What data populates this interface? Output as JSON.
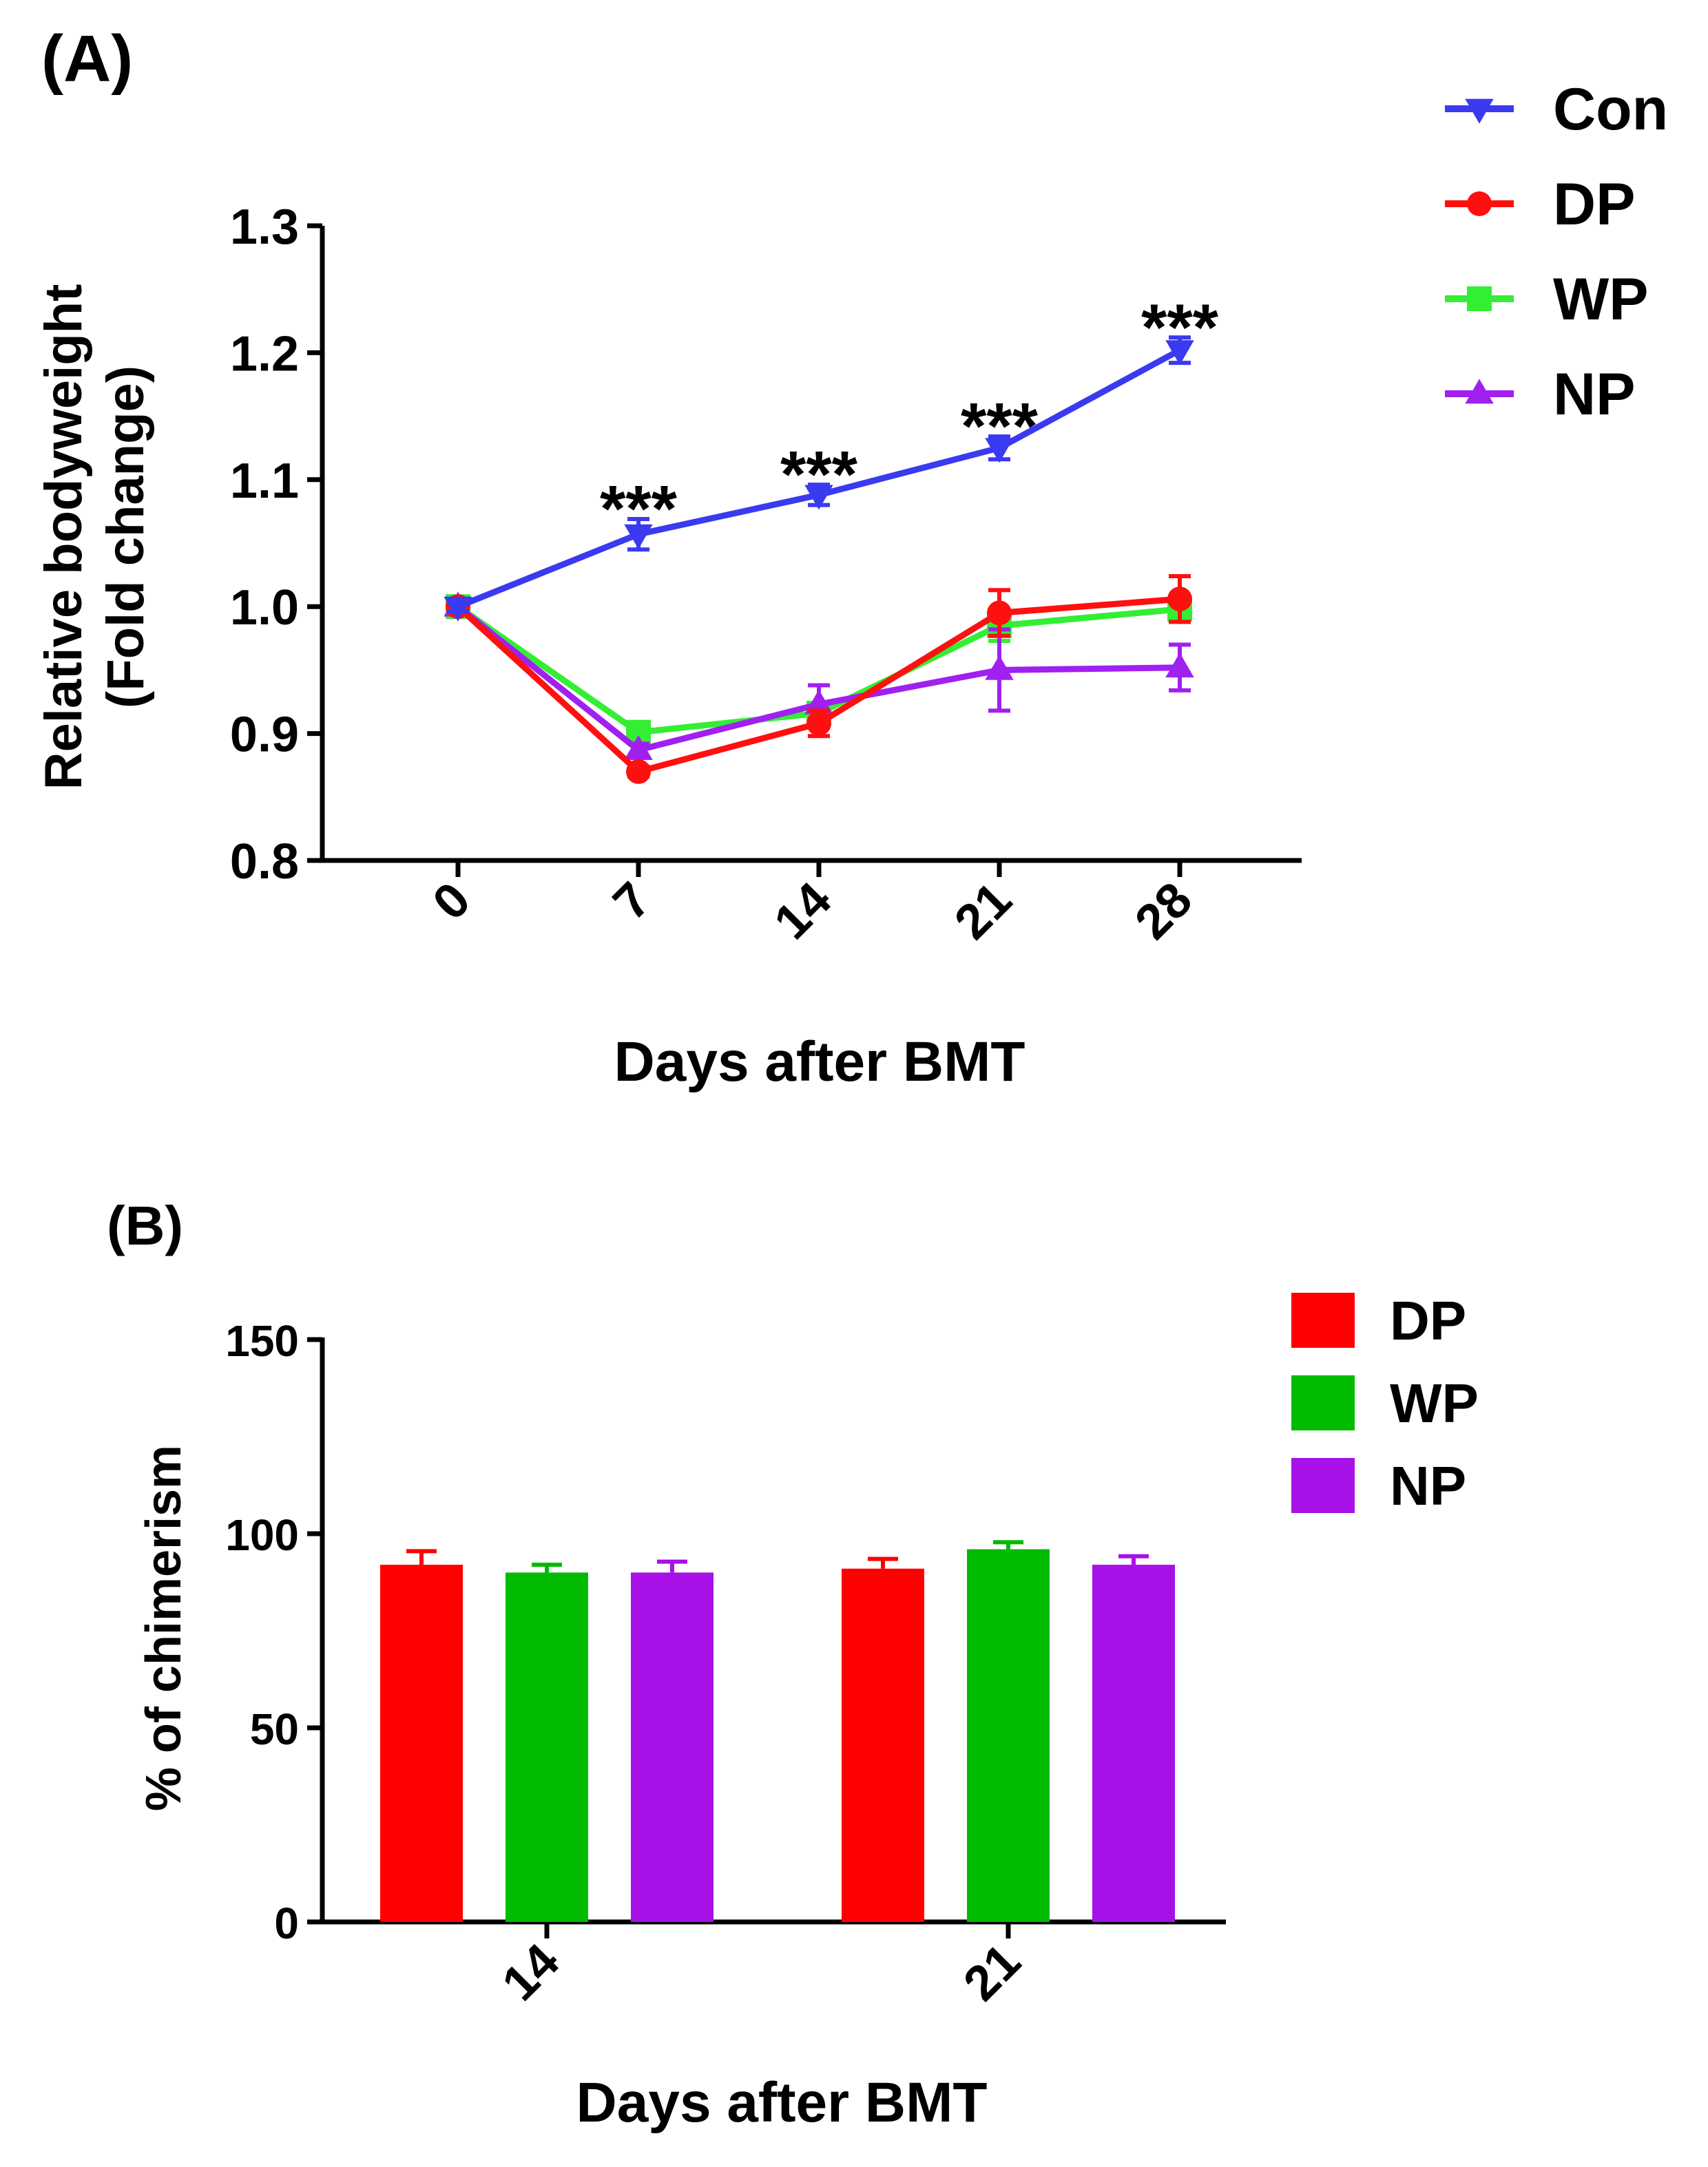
{
  "chart_data": [
    {
      "panel_label": "(A)",
      "type": "line",
      "xlabel": "Days after BMT",
      "ylabel_line1": "Relative bodyweight",
      "ylabel_line2": "(Fold change)",
      "x": [
        0,
        7,
        14,
        21,
        28
      ],
      "x_tick_labels": [
        "0",
        "7",
        "14",
        "21",
        "28"
      ],
      "ylim": [
        0.8,
        1.3
      ],
      "y_ticks": [
        0.8,
        0.9,
        1.0,
        1.1,
        1.2,
        1.3
      ],
      "y_tick_labels": [
        "0.8",
        "0.9",
        "1.0",
        "1.1",
        "1.2",
        "1.3"
      ],
      "series": [
        {
          "name": "Con",
          "color": "#3a3af0",
          "marker": "triangle-down",
          "values": [
            1.0,
            1.057,
            1.088,
            1.125,
            1.202
          ],
          "errors": [
            0.004,
            0.012,
            0.008,
            0.009,
            0.01
          ]
        },
        {
          "name": "DP",
          "color": "#ff1010",
          "marker": "circle",
          "values": [
            1.0,
            0.87,
            0.908,
            0.995,
            1.006
          ],
          "errors": [
            0.003,
            0.004,
            0.01,
            0.018,
            0.018
          ]
        },
        {
          "name": "WP",
          "color": "#33ee33",
          "marker": "square",
          "values": [
            1.0,
            0.901,
            0.916,
            0.985,
            0.998
          ],
          "errors": [
            0.003,
            0.005,
            0.008,
            0.012,
            0.01
          ]
        },
        {
          "name": "NP",
          "color": "#a020f0",
          "marker": "triangle-up",
          "values": [
            1.0,
            0.887,
            0.923,
            0.95,
            0.952
          ],
          "errors": [
            0.003,
            0.005,
            0.015,
            0.032,
            0.018
          ]
        }
      ],
      "annotations": [
        {
          "x": 7,
          "text": "***"
        },
        {
          "x": 14,
          "text": "***"
        },
        {
          "x": 21,
          "text": "***"
        },
        {
          "x": 28,
          "text": "***"
        }
      ],
      "legend": {
        "position": "top-right",
        "entries": [
          "Con",
          "DP",
          "WP",
          "NP"
        ]
      }
    },
    {
      "panel_label": "(B)",
      "type": "bar",
      "xlabel": "Days after BMT",
      "ylabel": "% of chimerism",
      "categories": [
        "14",
        "21"
      ],
      "ylim": [
        0,
        150
      ],
      "y_ticks": [
        0,
        50,
        100,
        150
      ],
      "y_tick_labels": [
        "0",
        "50",
        "100",
        "150"
      ],
      "series": [
        {
          "name": "DP",
          "color": "#ff0000",
          "values": [
            92,
            91
          ],
          "errors": [
            3.5,
            2.5
          ]
        },
        {
          "name": "WP",
          "color": "#00bb00",
          "values": [
            90,
            96
          ],
          "errors": [
            2.0,
            1.8
          ]
        },
        {
          "name": "NP",
          "color": "#a810e8",
          "values": [
            90,
            92
          ],
          "errors": [
            2.8,
            2.2
          ]
        }
      ],
      "legend": {
        "position": "top-right",
        "entries": [
          "DP",
          "WP",
          "NP"
        ]
      }
    }
  ]
}
